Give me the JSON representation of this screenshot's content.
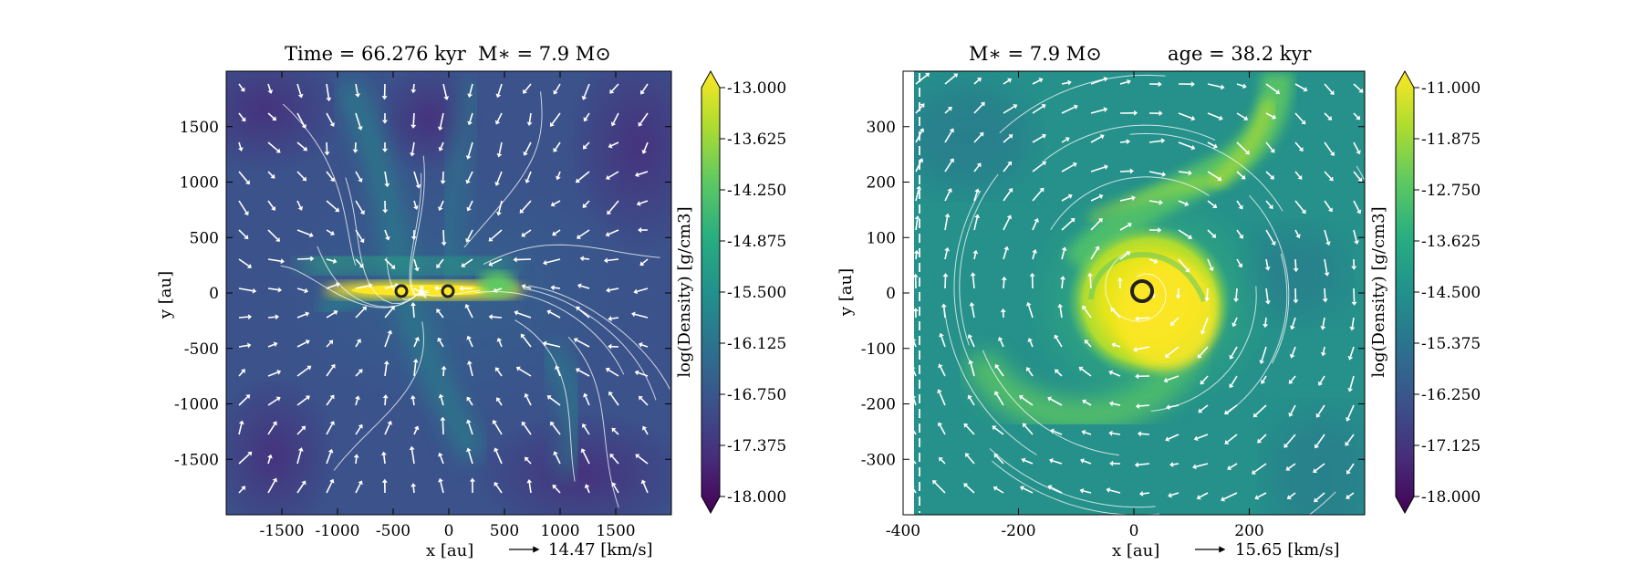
{
  "panels": [
    {
      "title_left": "Time = 66.276 kyr",
      "title_right": "M∗ = 7.9 M⊙",
      "xlabel": "x [au]",
      "ylabel": "y [au]",
      "arrow_label": "14.47 [km/s]",
      "xlim": [
        -2000,
        2000
      ],
      "ylim": [
        -2000,
        2000
      ],
      "xticks": [
        "-1500",
        "-1000",
        "-500",
        "0",
        "500",
        "1000",
        "1500"
      ],
      "yticks": [
        "1500",
        "1000",
        "500",
        "0",
        "-500",
        "-1000",
        "-1500"
      ],
      "colorbar": {
        "label": "log(Density) [g/cm3]",
        "min": -18.0,
        "max": -13.0,
        "ticks": [
          "-13.000",
          "-13.625",
          "-14.250",
          "-14.875",
          "-15.500",
          "-16.125",
          "-16.750",
          "-17.375",
          "-18.000"
        ]
      }
    },
    {
      "title_left": "M∗ = 7.9 M⊙",
      "title_right": "age = 38.2 kyr",
      "xlabel": "x [au]",
      "ylabel": "y [au]",
      "arrow_label": "15.65 [km/s]",
      "xlim": [
        -400,
        400
      ],
      "ylim": [
        -400,
        400
      ],
      "xticks": [
        "-400",
        "-200",
        "0",
        "200"
      ],
      "yticks": [
        "300",
        "200",
        "100",
        "0",
        "-100",
        "-200",
        "-300"
      ],
      "colorbar": {
        "label": "log(Density) [g/cm3]",
        "min": -18.0,
        "max": -11.0,
        "ticks": [
          "-11.000",
          "-11.875",
          "-12.750",
          "-13.625",
          "-14.500",
          "-15.375",
          "-16.250",
          "-17.125",
          "-18.000"
        ]
      }
    }
  ],
  "chart_data": [
    {
      "type": "heatmap",
      "title": "Time = 66.276 kyr    M∗ = 7.9 M⊙",
      "xlabel": "x [au]",
      "ylabel": "y [au]",
      "xlim": [
        -2000,
        2000
      ],
      "ylim": [
        -2000,
        2000
      ],
      "colorbar_label": "log(Density) [g/cm3]",
      "colorbar_range": [
        -18.0,
        -13.0
      ],
      "colormap": "viridis",
      "overlays": [
        "velocity streamlines",
        "velocity vectors"
      ],
      "reference_vector": "14.47 [km/s]",
      "sinks": [
        {
          "x": -430,
          "y": 0
        },
        {
          "x": 0,
          "y": 0
        }
      ]
    },
    {
      "type": "heatmap",
      "title": "M∗ = 7.9 M⊙    age = 38.2 kyr",
      "xlabel": "x [au]",
      "ylabel": "y [au]",
      "xlim": [
        -400,
        400
      ],
      "ylim": [
        -400,
        400
      ],
      "colorbar_label": "log(Density) [g/cm3]",
      "colorbar_range": [
        -18.0,
        -11.0
      ],
      "colormap": "viridis",
      "overlays": [
        "velocity streamlines",
        "velocity vectors"
      ],
      "reference_vector": "15.65 [km/s]",
      "sinks": [
        {
          "x": 0,
          "y": 0
        }
      ]
    }
  ]
}
